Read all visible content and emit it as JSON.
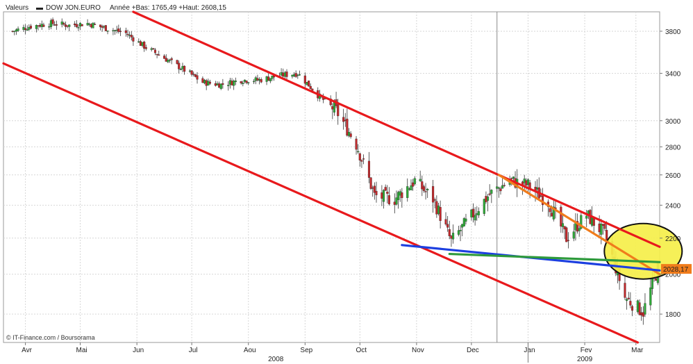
{
  "header": {
    "label": "Valeurs",
    "legend_marker": "▬",
    "series_name": "DOW JON.EURO",
    "stats": "Année +Bas: 1765,49 +Haut: 2608,15"
  },
  "credit": "© IT-Finance.com / Boursorama",
  "chart_data": {
    "type": "candlestick",
    "title": "",
    "xlabel": "",
    "ylabel": "",
    "series_name": "DOW JON.EURO",
    "year_low": 1765.49,
    "year_high": 2608.15,
    "last_value": 2028.17,
    "last_value_label": "2028,17",
    "x_range": [
      "2008-03-20",
      "2009-03-14"
    ],
    "y_range": [
      1670,
      4000
    ],
    "y_scale": "log",
    "y_ticks": [
      1800,
      2000,
      2200,
      2400,
      2600,
      2800,
      3000,
      3400,
      3800
    ],
    "x_ticks": [
      {
        "label": "Avr",
        "date": "2008-04-01"
      },
      {
        "label": "Mai",
        "date": "2008-05-01"
      },
      {
        "label": "Jun",
        "date": "2008-06-01"
      },
      {
        "label": "Jul",
        "date": "2008-07-01"
      },
      {
        "label": "Aou",
        "date": "2008-08-01"
      },
      {
        "label": "Sep",
        "date": "2008-09-01"
      },
      {
        "label": "Oct",
        "date": "2008-10-01"
      },
      {
        "label": "Nov",
        "date": "2008-11-01"
      },
      {
        "label": "Dec",
        "date": "2008-12-01"
      },
      {
        "label": "Jan",
        "date": "2009-01-01"
      },
      {
        "label": "Fev",
        "date": "2009-02-01"
      },
      {
        "label": "Mar",
        "date": "2009-03-01"
      }
    ],
    "year_labels": [
      {
        "label": "2008",
        "date": "2008-08-16"
      },
      {
        "label": "2009",
        "date": "2009-02-01"
      }
    ],
    "year_separators": [
      "2009-01-01"
    ],
    "vertical_marker": "2008-12-15",
    "grid": true,
    "close_series": [
      [
        "2008-03-25",
        3800
      ],
      [
        "2008-04-04",
        3850
      ],
      [
        "2008-04-15",
        3880
      ],
      [
        "2008-04-25",
        3860
      ],
      [
        "2008-05-05",
        3880
      ],
      [
        "2008-05-15",
        3830
      ],
      [
        "2008-05-26",
        3780
      ],
      [
        "2008-06-05",
        3650
      ],
      [
        "2008-06-16",
        3540
      ],
      [
        "2008-06-26",
        3440
      ],
      [
        "2008-07-07",
        3320
      ],
      [
        "2008-07-17",
        3300
      ],
      [
        "2008-07-28",
        3340
      ],
      [
        "2008-08-07",
        3340
      ],
      [
        "2008-08-18",
        3380
      ],
      [
        "2008-08-28",
        3400
      ],
      [
        "2008-09-08",
        3210
      ],
      [
        "2008-09-18",
        3080
      ],
      [
        "2008-09-29",
        2820
      ],
      [
        "2008-10-09",
        2460
      ],
      [
        "2008-10-20",
        2440
      ],
      [
        "2008-10-31",
        2560
      ],
      [
        "2008-11-10",
        2440
      ],
      [
        "2008-11-20",
        2180
      ],
      [
        "2008-12-01",
        2330
      ],
      [
        "2008-12-11",
        2470
      ],
      [
        "2008-12-22",
        2560
      ],
      [
        "2009-01-01",
        2530
      ],
      [
        "2009-01-12",
        2420
      ],
      [
        "2009-01-22",
        2200
      ],
      [
        "2009-02-02",
        2340
      ],
      [
        "2009-02-12",
        2220
      ],
      [
        "2009-02-23",
        1880
      ],
      [
        "2009-03-05",
        1810
      ],
      [
        "2009-03-13",
        2028
      ]
    ],
    "trendlines": [
      {
        "color": "#e8191c",
        "from": [
          "2008-05-30",
          4000
        ],
        "to": [
          "2009-03-14",
          2150
        ]
      },
      {
        "color": "#e8191c",
        "from": [
          "2008-03-20",
          3490
        ],
        "to": [
          "2009-03-02",
          1670
        ]
      },
      {
        "color": "#f07c1c",
        "from": [
          "2008-12-16",
          2600
        ],
        "to": [
          "2009-03-14",
          2000
        ]
      },
      {
        "color": "#1c3fe0",
        "from": [
          "2008-10-24",
          2160
        ],
        "to": [
          "2009-03-14",
          2020
        ]
      },
      {
        "color": "#2e9a3c",
        "from": [
          "2008-11-19",
          2110
        ],
        "to": [
          "2009-03-14",
          2065
        ]
      }
    ],
    "highlight_ellipse": {
      "center": [
        "2009-03-05",
        2125
      ],
      "fill": "#f5ef4a",
      "stroke": "#111111"
    },
    "colors": {
      "up": "#2fa838",
      "down": "#c0282b",
      "wick": "#333333",
      "price_tag": "#f07c1c"
    }
  }
}
